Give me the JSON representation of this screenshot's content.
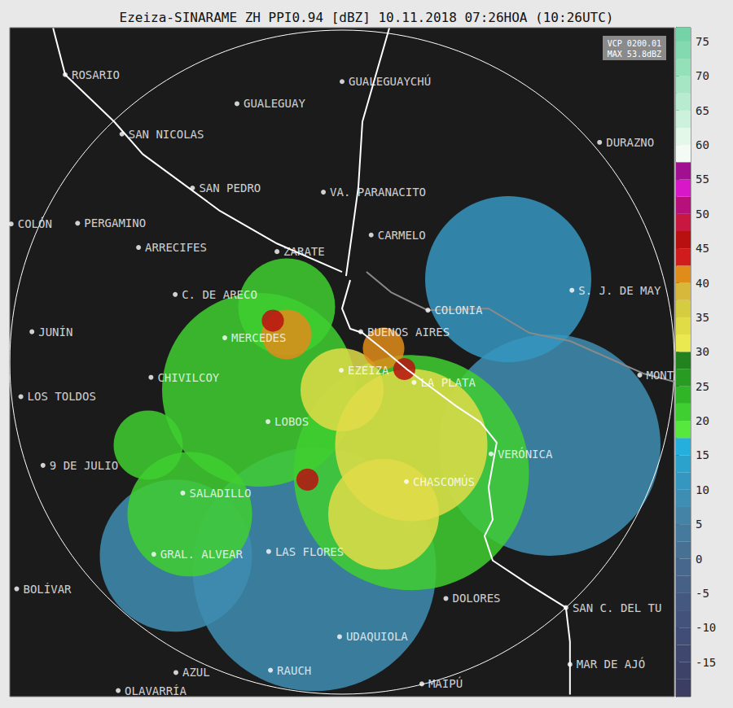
{
  "chart_data": {
    "type": "radar_map",
    "title": "Ezeiza-SINARAME ZH PPI0.94 [dBZ] 10.11.2018 07:26HOA (10:26UTC)",
    "info": [
      "VCP 0200.01",
      "MAX 53.8dBZ"
    ],
    "xlim": [
      -240,
      240
    ],
    "ylim": [
      -242,
      242
    ],
    "tick_labels": false,
    "range_km": 240,
    "cities": [
      {
        "name": "ROSARIO",
        "x": -200,
        "y": 208
      },
      {
        "name": "GUALEGUAY",
        "x": -75.9,
        "y": 187
      },
      {
        "name": "GUALEGUAYCHÚ",
        "x": 0,
        "y": 203
      },
      {
        "name": "SAN NICOLAS",
        "x": -159,
        "y": 165
      },
      {
        "name": "DURAZNO",
        "x": 186,
        "y": 159
      },
      {
        "name": "SAN PEDRO",
        "x": -108,
        "y": 126
      },
      {
        "name": "VA. PARANACITO",
        "x": -13.5,
        "y": 123
      },
      {
        "name": "COLÓN",
        "x": -239,
        "y": 100
      },
      {
        "name": "PERGAMINO",
        "x": -191,
        "y": 100.5
      },
      {
        "name": "ARRECIFES",
        "x": -147,
        "y": 83
      },
      {
        "name": "ZARATE",
        "x": -47,
        "y": 80
      },
      {
        "name": "CARMELO",
        "x": 21,
        "y": 92
      },
      {
        "name": "C. DE ARECO",
        "x": -120.5,
        "y": 49
      },
      {
        "name": "S. J. DE MAY",
        "x": 166,
        "y": 52
      },
      {
        "name": "COLONIA",
        "x": 62,
        "y": 37.6
      },
      {
        "name": "JUNÍN",
        "x": -224,
        "y": 22
      },
      {
        "name": "BUENOS AIRES",
        "x": 13.5,
        "y": 22
      },
      {
        "name": "MERCEDES",
        "x": -84.7,
        "y": 17.6
      },
      {
        "name": "EZEIZA",
        "x": -0.6,
        "y": -5.9
      },
      {
        "name": "CHIVILCOY",
        "x": -138,
        "y": -11
      },
      {
        "name": "LA PLATA",
        "x": 52,
        "y": -14.7
      },
      {
        "name": "MONT",
        "x": 215,
        "y": -9.4
      },
      {
        "name": "LOS TOLDOS",
        "x": -232,
        "y": -25
      },
      {
        "name": "LOBOS",
        "x": -53.5,
        "y": -43
      },
      {
        "name": "VERÓNICA",
        "x": 107.6,
        "y": -66.4
      },
      {
        "name": "9 DE JULIO",
        "x": -216,
        "y": -74.7
      },
      {
        "name": "CHASCOMÚS",
        "x": 46.5,
        "y": -86.4
      },
      {
        "name": "SALADILLO",
        "x": -115,
        "y": -94.7
      },
      {
        "name": "GRAL. ALVEAR",
        "x": -136,
        "y": -139
      },
      {
        "name": "LAS FLORES",
        "x": -53,
        "y": -137
      },
      {
        "name": "BOLÍVAR",
        "x": -235,
        "y": -164
      },
      {
        "name": "DOLORES",
        "x": 75,
        "y": -171
      },
      {
        "name": "SAN C. DEL TU",
        "x": 161.7,
        "y": -177.6
      },
      {
        "name": "UDAQUIOLA",
        "x": -1.8,
        "y": -198.7
      },
      {
        "name": "MAR DE AJÓ",
        "x": 164.6,
        "y": -218.7
      },
      {
        "name": "AZUL",
        "x": -120,
        "y": -224.6
      },
      {
        "name": "RAUCH",
        "x": -51.7,
        "y": -222.9
      },
      {
        "name": "OLAVARRÍA",
        "x": -161.7,
        "y": -237.6
      },
      {
        "name": "MAIPÚ",
        "x": 57.6,
        "y": -232.8
      }
    ],
    "lines": [
      {
        "color": "#ffffff",
        "points": [
          [
            5.9,
            59.4
          ],
          [
            0,
            38.8
          ],
          [
            5.9,
            24.1
          ],
          [
            14.7,
            21.2
          ],
          [
            29.4,
            9.4
          ],
          [
            47,
            -5.3
          ],
          [
            58.8,
            -14.1
          ],
          [
            82.3,
            -31.7
          ],
          [
            100,
            -43.5
          ],
          [
            111.7,
            -58.2
          ],
          [
            105.8,
            -90.6
          ],
          [
            108.8,
            -114
          ],
          [
            102.9,
            -125.8
          ],
          [
            108.8,
            -143.5
          ],
          [
            135.2,
            -161.1
          ],
          [
            161.7,
            -177.6
          ],
          [
            164.6,
            -202.3
          ],
          [
            164.6,
            -240.5
          ]
        ]
      },
      {
        "color": "#ffffff",
        "points": [
          [
            34.1,
            241.7
          ],
          [
            14.7,
            174
          ],
          [
            11.8,
            127
          ],
          [
            7,
            91.7
          ],
          [
            2.9,
            62.3
          ]
        ]
      },
      {
        "color": "#ffffff",
        "points": [
          [
            -208.7,
            241.7
          ],
          [
            -200,
            208
          ],
          [
            -164.6,
            174
          ],
          [
            -144,
            150.5
          ],
          [
            -88.2,
            109.4
          ],
          [
            -47,
            85.8
          ],
          [
            0,
            65.3
          ]
        ]
      },
      {
        "color": "#8a8a8a",
        "points": [
          [
            17.6,
            65.3
          ],
          [
            35.3,
            50.6
          ],
          [
            61.7,
            37.6
          ],
          [
            105.8,
            38.8
          ],
          [
            135.2,
            21.2
          ],
          [
            164.6,
            15.3
          ],
          [
            217.6,
            -8.2
          ],
          [
            240,
            -14.1
          ]
        ]
      }
    ],
    "echoes": [
      {
        "x": -20,
        "y": -150,
        "r": 88,
        "dbz": 8
      },
      {
        "x": 150,
        "y": -60,
        "r": 80,
        "dbz": 8
      },
      {
        "x": 120,
        "y": 60,
        "r": 60,
        "dbz": 10
      },
      {
        "x": -120,
        "y": -140,
        "r": 55,
        "dbz": 8
      },
      {
        "x": 50,
        "y": -80,
        "r": 85,
        "dbz": 22
      },
      {
        "x": -60,
        "y": -20,
        "r": 70,
        "dbz": 22
      },
      {
        "x": -110,
        "y": -110,
        "r": 45,
        "dbz": 22
      },
      {
        "x": -40,
        "y": 40,
        "r": 35,
        "dbz": 22
      },
      {
        "x": -140,
        "y": -60,
        "r": 25,
        "dbz": 22
      },
      {
        "x": 50,
        "y": -60,
        "r": 55,
        "dbz": 33
      },
      {
        "x": 30,
        "y": -110,
        "r": 40,
        "dbz": 33
      },
      {
        "x": 0,
        "y": -20,
        "r": 30,
        "dbz": 33
      },
      {
        "x": -40,
        "y": 20,
        "r": 18,
        "dbz": 40
      },
      {
        "x": 30,
        "y": 10,
        "r": 15,
        "dbz": 42
      },
      {
        "x": -25,
        "y": -85,
        "r": 8,
        "dbz": 45
      },
      {
        "x": -50,
        "y": 30,
        "r": 8,
        "dbz": 45
      },
      {
        "x": 45,
        "y": -5,
        "r": 8,
        "dbz": 45
      }
    ],
    "colorbar": {
      "range": [
        -20,
        77
      ],
      "ticks": [
        -15,
        -10,
        -5,
        0,
        5,
        10,
        15,
        20,
        25,
        30,
        35,
        40,
        45,
        50,
        55,
        60,
        65,
        70,
        75
      ],
      "bounds": [
        -20,
        -17.5,
        -15,
        -12.5,
        -10,
        -7.5,
        -5,
        -2.5,
        0,
        2.5,
        5,
        7.5,
        10,
        12.5,
        15,
        17.5,
        20,
        22.5,
        25,
        27.5,
        30,
        32.5,
        35,
        37.5,
        40,
        42.5,
        45,
        47.5,
        50,
        52.5,
        55,
        57.5,
        60,
        62.5,
        65,
        67.5,
        70,
        72.5,
        75,
        77
      ],
      "colors": [
        "#3b3d63",
        "#3d4268",
        "#3f476e",
        "#414d74",
        "#43527a",
        "#455880",
        "#466086",
        "#47688c",
        "#477092",
        "#467a9c",
        "#4583a6",
        "#3e8db2",
        "#3597c0",
        "#2ba2cc",
        "#24afdc",
        "#56e83c",
        "#40cf30",
        "#30b527",
        "#289b22",
        "#22821d",
        "#eaea50",
        "#e0dc48",
        "#d6cc40",
        "#d8b83a",
        "#e08c1a",
        "#d01c1c",
        "#b81010",
        "#c81840",
        "#b8107a",
        "#d818c8",
        "#a01090",
        "#f4fbf4",
        "#e4f8ea",
        "#cdf2dc",
        "#b8ecd0",
        "#a6e6c4",
        "#94e0b8",
        "#84dab0",
        "#74d4a8"
      ]
    }
  }
}
